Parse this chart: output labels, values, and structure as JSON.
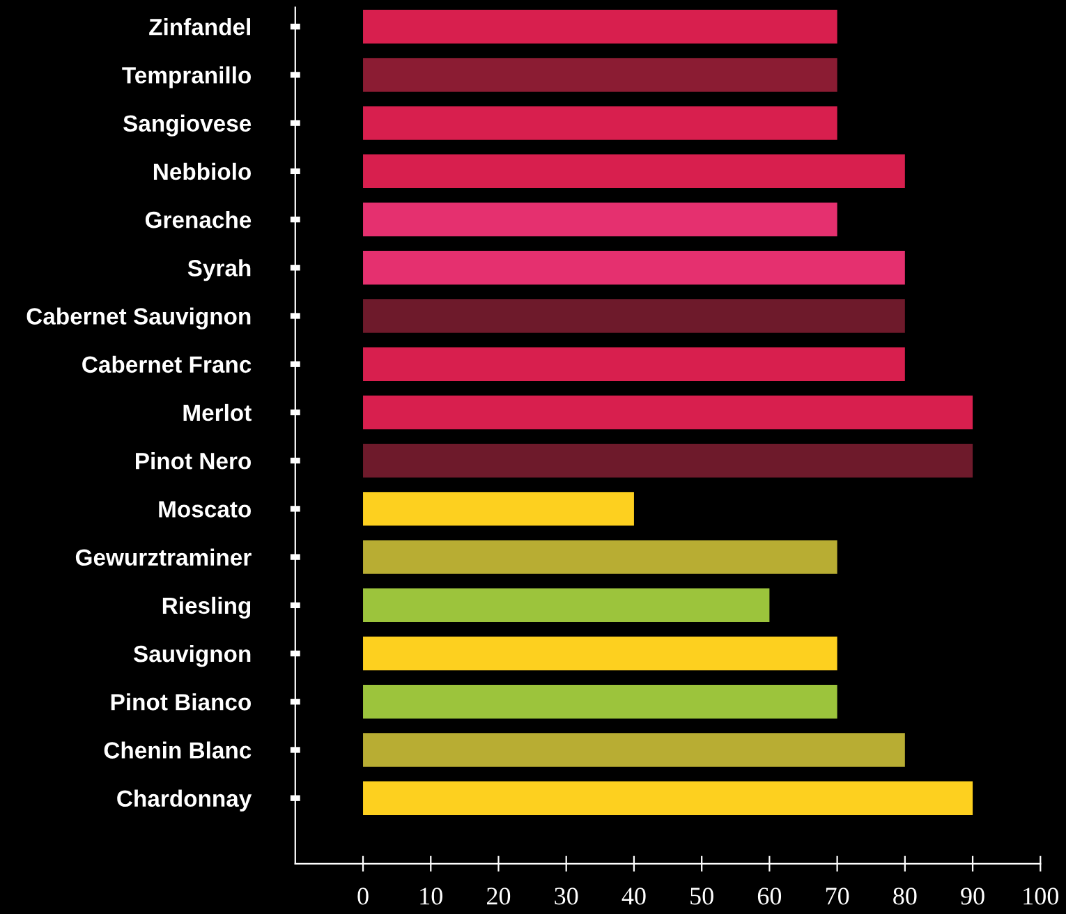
{
  "chart_data": {
    "type": "bar",
    "orientation": "horizontal",
    "categories": [
      "Zinfandel",
      "Tempranillo",
      "Sangiovese",
      "Nebbiolo",
      "Grenache",
      "Syrah",
      "Cabernet Sauvignon",
      "Cabernet Franc",
      "Merlot",
      "Pinot Nero",
      "Moscato",
      "Gewurztraminer",
      "Riesling",
      "Sauvignon",
      "Pinot Bianco",
      "Chenin Blanc",
      "Chardonnay"
    ],
    "values": [
      70,
      70,
      70,
      80,
      70,
      80,
      80,
      80,
      90,
      90,
      40,
      70,
      60,
      70,
      70,
      80,
      90
    ],
    "colors": [
      "#d81f4e",
      "#8b1c33",
      "#d81f4e",
      "#d81f4e",
      "#e5306f",
      "#e5306f",
      "#6e1a2b",
      "#d81f4e",
      "#d81f4e",
      "#6e1a2b",
      "#fdd01f",
      "#b8ad33",
      "#9cc43c",
      "#fdd01f",
      "#9cc43c",
      "#b8ad33",
      "#fdd01f"
    ],
    "xlim": [
      -10,
      100
    ],
    "xticks": [
      0,
      10,
      20,
      30,
      40,
      50,
      60,
      70,
      80,
      90,
      100
    ],
    "grid": false,
    "legend": false
  }
}
